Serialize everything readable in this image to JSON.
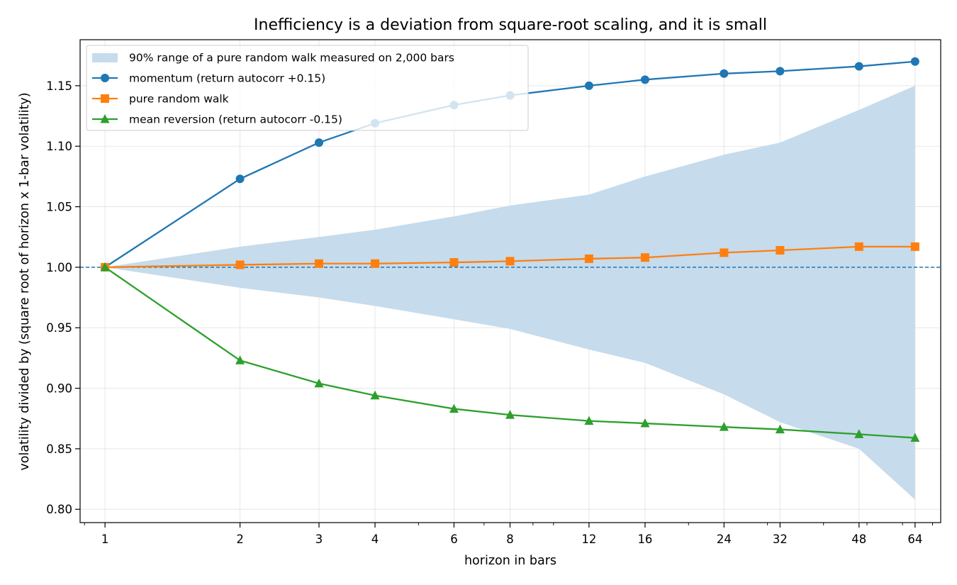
{
  "chart_data": {
    "type": "line",
    "title": "Inefficiency is a deviation from square-root scaling, and it is small",
    "xlabel": "horizon in bars",
    "ylabel": "volatility divided by (square root of horizon x 1-bar volatility)",
    "x_scale": "log",
    "x": [
      1,
      2,
      3,
      4,
      6,
      8,
      12,
      16,
      24,
      32,
      48,
      64
    ],
    "x_tick_labels": [
      "1",
      "2",
      "3",
      "4",
      "6",
      "8",
      "12",
      "16",
      "24",
      "32",
      "48",
      "64"
    ],
    "xlim": [
      0.88,
      73
    ],
    "ylim": [
      0.789,
      1.188
    ],
    "y_ticks": [
      0.8,
      0.85,
      0.9,
      0.95,
      1.0,
      1.05,
      1.1,
      1.15
    ],
    "y_tick_labels": [
      "0.80",
      "0.85",
      "0.90",
      "0.95",
      "1.00",
      "1.05",
      "1.10",
      "1.15"
    ],
    "grid": true,
    "reference_line": {
      "y": 1.0,
      "style": "dashed",
      "color": "#1f77b4"
    },
    "band": {
      "name": "90% range of a pure random walk measured on 2,000 bars",
      "color": "#c6dbec",
      "upper": [
        1.0,
        1.017,
        1.025,
        1.031,
        1.042,
        1.051,
        1.06,
        1.075,
        1.093,
        1.103,
        1.13,
        1.15
      ],
      "lower": [
        1.0,
        0.983,
        0.975,
        0.968,
        0.957,
        0.949,
        0.932,
        0.921,
        0.895,
        0.872,
        0.85,
        0.808
      ]
    },
    "series": [
      {
        "name": "momentum (return autocorr +0.15)",
        "color": "#1f77b4",
        "marker": "circle",
        "values": [
          1.0,
          1.073,
          1.103,
          1.119,
          1.134,
          1.142,
          1.15,
          1.155,
          1.16,
          1.162,
          1.166,
          1.17
        ]
      },
      {
        "name": "pure random walk",
        "color": "#ff7f0e",
        "marker": "square",
        "values": [
          1.0,
          1.002,
          1.003,
          1.003,
          1.004,
          1.005,
          1.007,
          1.008,
          1.012,
          1.014,
          1.017,
          1.017
        ]
      },
      {
        "name": "mean reversion (return autocorr -0.15)",
        "color": "#2ca02c",
        "marker": "triangle",
        "values": [
          1.0,
          0.923,
          0.904,
          0.894,
          0.883,
          0.878,
          0.873,
          0.871,
          0.868,
          0.866,
          0.862,
          0.859
        ]
      }
    ],
    "legend": {
      "position": "top-left"
    }
  }
}
